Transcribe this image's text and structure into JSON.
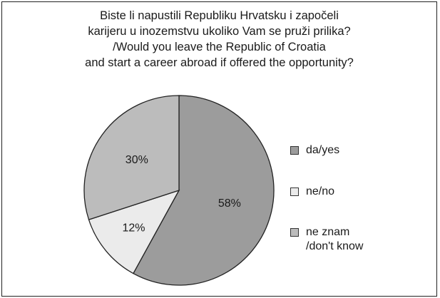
{
  "chart_data": {
    "type": "pie",
    "title_lines": [
      "Biste li napustili Republiku Hrvatsku i započeli",
      "karijeru u inozemstvu ukoliko Vam se pruži prilika?",
      "/Would you leave the Republic of Croatia",
      "and start a career abroad if offered the opportunity?"
    ],
    "slices": [
      {
        "name": "da/yes",
        "value": 58,
        "label": "58%",
        "color": "#9c9c9c"
      },
      {
        "name": "ne/no",
        "value": 12,
        "label": "12%",
        "color": "#ebebeb"
      },
      {
        "name": "ne znam\n/don't know",
        "value": 30,
        "label": "30%",
        "color": "#bcbcbc"
      }
    ],
    "legend_position": "right",
    "start_angle": "top, clockwise"
  }
}
